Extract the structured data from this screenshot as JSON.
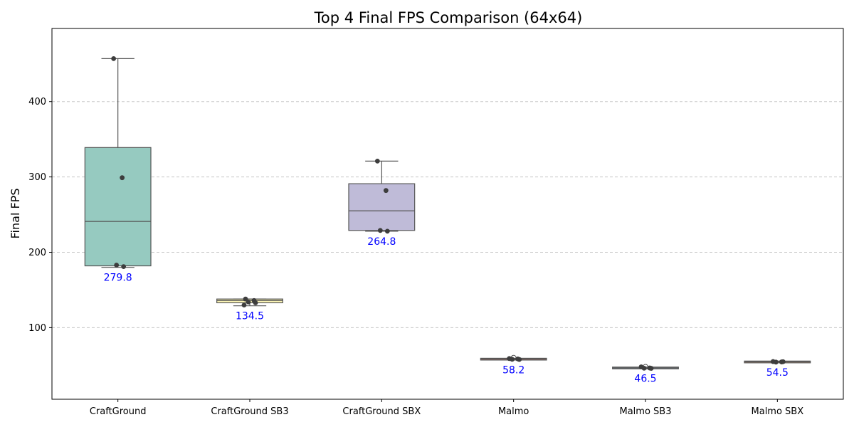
{
  "chart_data": {
    "type": "box",
    "title": "Top 4 Final FPS Comparison (64x64)",
    "xlabel": "",
    "ylabel": "Final FPS",
    "ylim": [
      5,
      497
    ],
    "yticks": [
      100,
      200,
      300,
      400
    ],
    "grid": "y-dashed",
    "categories": [
      "CraftGround",
      "CraftGround SB3",
      "CraftGround SBX",
      "Malmo",
      "Malmo SB3",
      "Malmo SBX"
    ],
    "boxes": [
      {
        "category": "CraftGround",
        "color": "#96cac0",
        "q1": 182,
        "median": 241,
        "q3": 339,
        "whisker_low": 180,
        "whisker_high": 457,
        "mean_label": "279.8",
        "points": [
          457,
          299,
          183,
          181
        ]
      },
      {
        "category": "CraftGround SB3",
        "color": "#fcf6b6",
        "q1": 133,
        "median": 136,
        "q3": 138,
        "whisker_low": 129,
        "whisker_high": 138,
        "mean_label": "134.5",
        "points": [
          138,
          136,
          134,
          133,
          130
        ]
      },
      {
        "category": "CraftGround SBX",
        "color": "#bfbbd8",
        "q1": 229,
        "median": 255,
        "q3": 291,
        "whisker_low": 228,
        "whisker_high": 321,
        "mean_label": "264.8",
        "points": [
          321,
          282,
          229,
          228
        ]
      },
      {
        "category": "Malmo",
        "color": "#f9988a",
        "q1": 57.8,
        "median": 58.2,
        "q3": 58.6,
        "whisker_low": 57.5,
        "whisker_high": 58.8,
        "outliers": [
          60
        ],
        "mean_label": "58.2",
        "points": [
          59,
          58.5,
          58,
          57.8
        ]
      },
      {
        "category": "Malmo SB3",
        "color": "#a2b8ce",
        "q1": 46.2,
        "median": 46.5,
        "q3": 46.8,
        "whisker_low": 46,
        "whisker_high": 47,
        "outliers": [
          48
        ],
        "mean_label": "46.5",
        "points": [
          48,
          46.5,
          46.2,
          46
        ]
      },
      {
        "category": "Malmo SBX",
        "color": "#fbc59a",
        "q1": 54.2,
        "median": 54.5,
        "q3": 54.8,
        "whisker_low": 54,
        "whisker_high": 55,
        "mean_label": "54.5",
        "points": [
          55,
          54.5,
          54.3,
          54.8
        ]
      }
    ],
    "label_color": "#0000ff",
    "point_color": "#3d3d3d",
    "frame_color": "#000000"
  }
}
